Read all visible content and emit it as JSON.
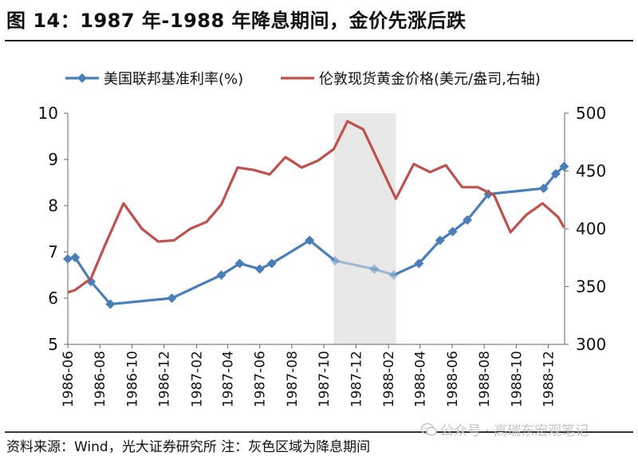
{
  "title": "图 14：1987 年-1988 年降息期间，金价先涨后跌",
  "source_note": "资料来源：Wind，光大证券研究所  注：灰色区域为降息期间",
  "watermark": {
    "icon": "wechat-icon",
    "text": "公众号 · 高瑞东宏观笔记"
  },
  "colors": {
    "fed_rate": "#4a7ebb",
    "gold": "#c0504d",
    "shade": "#e8e8e8"
  },
  "chart_data": {
    "type": "line",
    "title": "",
    "shaded_period": {
      "label": "灰色区域为降息期间",
      "x_start": "1987-10-20",
      "x_end": "1988-02-15"
    },
    "x_range": [
      "1986-06-01",
      "1989-01-01"
    ],
    "x_ticks": [
      "1986-06",
      "1986-08",
      "1986-10",
      "1986-12",
      "1987-02",
      "1987-04",
      "1987-06",
      "1987-08",
      "1987-10",
      "1987-12",
      "1988-02",
      "1988-04",
      "1988-06",
      "1988-08",
      "1988-10",
      "1988-12"
    ],
    "y_left": {
      "min": 5,
      "max": 10,
      "ticks": [
        5,
        6,
        7,
        8,
        9,
        10
      ]
    },
    "y_right": {
      "min": 300,
      "max": 500,
      "ticks": [
        300,
        350,
        400,
        450,
        500
      ]
    },
    "legend_position": "top",
    "series": [
      {
        "name": "美国联邦基准利率(%)",
        "axis": "left",
        "marker": "diamond",
        "color": "#4a7ebb",
        "points": [
          [
            "1986-06-01",
            6.85
          ],
          [
            "1986-06-15",
            6.88
          ],
          [
            "1986-07-15",
            6.36
          ],
          [
            "1986-08-21",
            5.87
          ],
          [
            "1986-12-16",
            6.0
          ],
          [
            "1987-03-20",
            6.5
          ],
          [
            "1987-04-24",
            6.75
          ],
          [
            "1987-06-01",
            6.63
          ],
          [
            "1987-06-24",
            6.75
          ],
          [
            "1987-09-04",
            7.25
          ],
          [
            "1987-10-22",
            6.81
          ],
          [
            "1988-01-05",
            6.63
          ],
          [
            "1988-02-11",
            6.5
          ],
          [
            "1988-03-30",
            6.75
          ],
          [
            "1988-05-09",
            7.25
          ],
          [
            "1988-06-02",
            7.44
          ],
          [
            "1988-06-30",
            7.69
          ],
          [
            "1988-08-09",
            8.25
          ],
          [
            "1988-11-22",
            8.375
          ],
          [
            "1988-12-15",
            8.69
          ],
          [
            "1988-12-31",
            8.85
          ]
        ]
      },
      {
        "name": "伦敦现货黄金价格(美元/盎司,右轴)",
        "axis": "right",
        "marker": "none",
        "color": "#c0504d",
        "points": [
          [
            "1986-06-01",
            345
          ],
          [
            "1986-06-15",
            347
          ],
          [
            "1986-07-15",
            357
          ],
          [
            "1986-08-10",
            385
          ],
          [
            "1986-09-15",
            422
          ],
          [
            "1986-10-20",
            400
          ],
          [
            "1986-11-20",
            389
          ],
          [
            "1986-12-20",
            390
          ],
          [
            "1987-01-20",
            400
          ],
          [
            "1987-02-20",
            406
          ],
          [
            "1987-03-20",
            421
          ],
          [
            "1987-04-20",
            453
          ],
          [
            "1987-05-20",
            451
          ],
          [
            "1987-06-20",
            447
          ],
          [
            "1987-07-20",
            462
          ],
          [
            "1987-08-20",
            453
          ],
          [
            "1987-09-20",
            459
          ],
          [
            "1987-10-20",
            469
          ],
          [
            "1987-11-15",
            493
          ],
          [
            "1987-12-15",
            486
          ],
          [
            "1988-01-15",
            456
          ],
          [
            "1988-02-15",
            426
          ],
          [
            "1988-03-20",
            456
          ],
          [
            "1988-04-20",
            449
          ],
          [
            "1988-05-20",
            455
          ],
          [
            "1988-06-20",
            436
          ],
          [
            "1988-07-20",
            436
          ],
          [
            "1988-08-20",
            429
          ],
          [
            "1988-09-20",
            397
          ],
          [
            "1988-10-20",
            412
          ],
          [
            "1988-11-20",
            422
          ],
          [
            "1988-12-20",
            410
          ],
          [
            "1988-12-31",
            401
          ]
        ]
      }
    ]
  }
}
